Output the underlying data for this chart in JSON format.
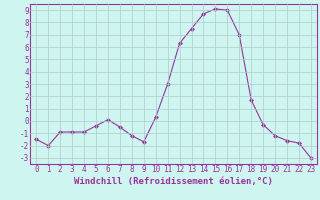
{
  "x": [
    0,
    1,
    2,
    3,
    4,
    5,
    6,
    7,
    8,
    9,
    10,
    11,
    12,
    13,
    14,
    15,
    16,
    17,
    18,
    19,
    20,
    21,
    22,
    23
  ],
  "y": [
    -1.5,
    -2.0,
    -0.9,
    -0.9,
    -0.9,
    -0.4,
    0.1,
    -0.5,
    -1.2,
    -1.7,
    0.3,
    3.0,
    6.3,
    7.5,
    8.7,
    9.1,
    9.0,
    7.0,
    1.7,
    -0.3,
    -1.2,
    -1.6,
    -1.8,
    -3.0
  ],
  "line_color": "#993399",
  "marker": "D",
  "marker_size": 2,
  "background_color": "#cef5f0",
  "grid_color": "#aacccc",
  "xlabel": "Windchill (Refroidissement éolien,°C)",
  "xlim": [
    -0.5,
    23.5
  ],
  "ylim": [
    -3.5,
    9.5
  ],
  "yticks": [
    -3,
    -2,
    -1,
    0,
    1,
    2,
    3,
    4,
    5,
    6,
    7,
    8,
    9
  ],
  "ytick_labels": [
    "-3",
    "-2",
    "-1",
    "0",
    "1",
    "2",
    "3",
    "4",
    "5",
    "6",
    "7",
    "8",
    "9"
  ],
  "xticks": [
    0,
    1,
    2,
    3,
    4,
    5,
    6,
    7,
    8,
    9,
    10,
    11,
    12,
    13,
    14,
    15,
    16,
    17,
    18,
    19,
    20,
    21,
    22,
    23
  ],
  "tick_fontsize": 5.5,
  "label_fontsize": 6.5
}
